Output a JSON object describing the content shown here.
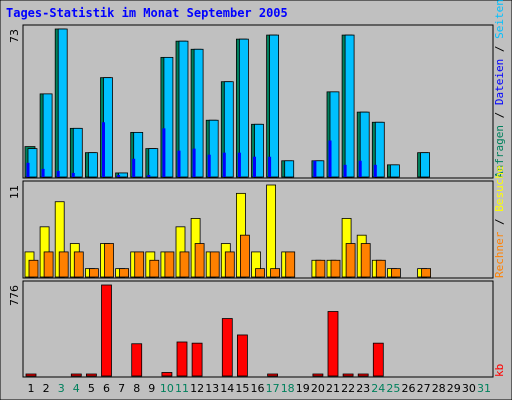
{
  "title": "Tages-Statistik im Monat September 2005",
  "colors": {
    "background": "#c0c0c0",
    "title": "#0000ff",
    "anfragen": "#00805c",
    "dateien": "#0000ff",
    "seiten": "#00c0ff",
    "besuche": "#ffff00",
    "rechner": "#ff8000",
    "kb": "#ff0000",
    "day_normal": "#000000",
    "day_weekend": "#00805c"
  },
  "chart_data": [
    {
      "type": "bar",
      "panel": "top",
      "ymax_label": "73",
      "ylim": [
        0,
        73
      ],
      "right_labels": [
        "Anfragen",
        "Dateien",
        "Seiten"
      ],
      "separator": "/",
      "categories": [
        "1",
        "2",
        "3",
        "4",
        "5",
        "6",
        "7",
        "8",
        "9",
        "10",
        "11",
        "12",
        "13",
        "14",
        "15",
        "16",
        "17",
        "18",
        "19",
        "20",
        "21",
        "22",
        "23",
        "24",
        "25",
        "26",
        "27",
        "28",
        "29",
        "30",
        "31"
      ],
      "weekend_days": [
        "3",
        "4",
        "10",
        "11",
        "17",
        "18",
        "24",
        "25",
        "31"
      ],
      "series": [
        {
          "name": "Anfragen",
          "values": [
            15,
            41,
            73,
            24,
            12,
            49,
            2,
            22,
            14,
            59,
            67,
            63,
            28,
            47,
            68,
            26,
            70,
            8,
            0,
            8,
            42,
            70,
            32,
            27,
            6,
            0,
            12,
            0,
            0,
            0,
            0
          ]
        },
        {
          "name": "Dateien",
          "values": [
            7,
            4,
            3,
            2,
            0,
            27,
            1,
            9,
            1,
            24,
            13,
            14,
            11,
            12,
            12,
            10,
            10,
            0,
            0,
            8,
            18,
            6,
            8,
            6,
            0,
            0,
            0,
            0,
            0,
            0,
            0
          ]
        },
        {
          "name": "Seiten",
          "values": [
            14,
            41,
            73,
            24,
            12,
            49,
            2,
            22,
            14,
            59,
            67,
            63,
            28,
            47,
            68,
            26,
            70,
            8,
            0,
            8,
            42,
            70,
            32,
            27,
            6,
            0,
            12,
            0,
            0,
            0,
            0
          ]
        }
      ]
    },
    {
      "type": "bar",
      "panel": "middle",
      "ymax_label": "11",
      "ylim": [
        0,
        11
      ],
      "right_labels": [
        "Rechner",
        "Besuche"
      ],
      "separator": "/",
      "categories": [
        "1",
        "2",
        "3",
        "4",
        "5",
        "6",
        "7",
        "8",
        "9",
        "10",
        "11",
        "12",
        "13",
        "14",
        "15",
        "16",
        "17",
        "18",
        "19",
        "20",
        "21",
        "22",
        "23",
        "24",
        "25",
        "26",
        "27",
        "28",
        "29",
        "30",
        "31"
      ],
      "series": [
        {
          "name": "Besuche",
          "values": [
            3,
            6,
            9,
            4,
            1,
            4,
            1,
            3,
            3,
            3,
            6,
            7,
            3,
            4,
            10,
            3,
            11,
            3,
            0,
            2,
            2,
            7,
            5,
            2,
            1,
            0,
            1,
            0,
            0,
            0,
            0
          ]
        },
        {
          "name": "Rechner",
          "values": [
            2,
            3,
            3,
            3,
            1,
            4,
            1,
            3,
            2,
            3,
            3,
            4,
            3,
            3,
            5,
            1,
            1,
            3,
            0,
            2,
            2,
            4,
            4,
            2,
            1,
            0,
            1,
            0,
            0,
            0,
            0
          ]
        }
      ]
    },
    {
      "type": "bar",
      "panel": "bottom",
      "ymax_label": "776",
      "ylim": [
        0,
        776
      ],
      "right_labels": [
        "kb"
      ],
      "separator": "",
      "categories": [
        "1",
        "2",
        "3",
        "4",
        "5",
        "6",
        "7",
        "8",
        "9",
        "10",
        "11",
        "12",
        "13",
        "14",
        "15",
        "16",
        "17",
        "18",
        "19",
        "20",
        "21",
        "22",
        "23",
        "24",
        "25",
        "26",
        "27",
        "28",
        "29",
        "30",
        "31"
      ],
      "series": [
        {
          "name": "kb",
          "values": [
            8,
            0,
            0,
            8,
            8,
            776,
            0,
            275,
            0,
            30,
            290,
            280,
            0,
            490,
            350,
            0,
            10,
            0,
            0,
            10,
            550,
            8,
            8,
            280,
            0,
            0,
            0,
            0,
            0,
            0,
            0
          ]
        }
      ]
    }
  ]
}
